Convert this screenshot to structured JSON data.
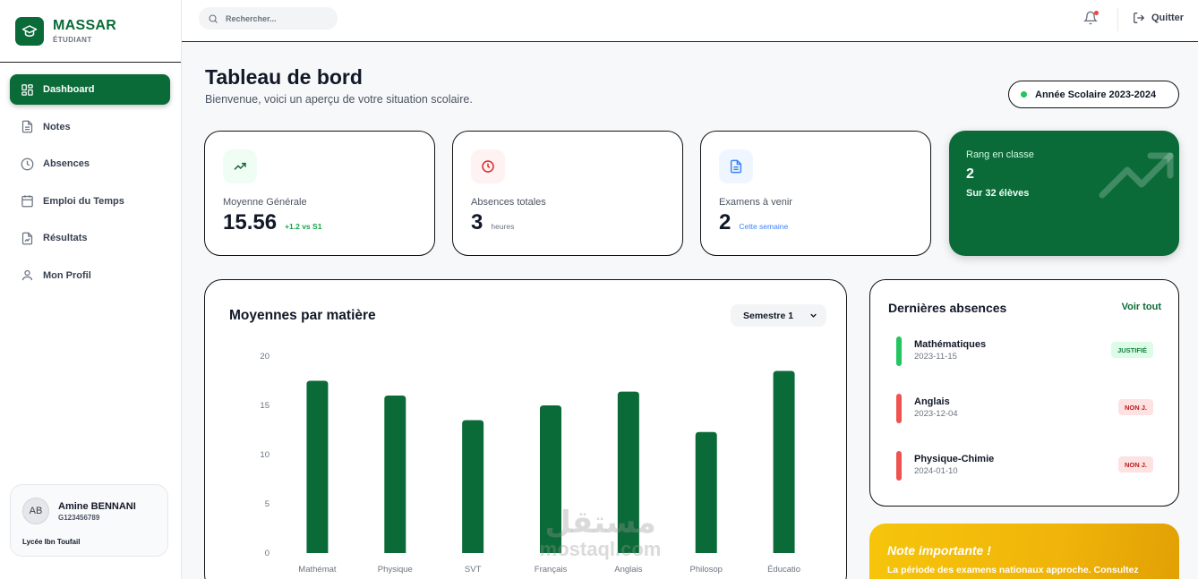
{
  "brand": {
    "name": "MASSAR",
    "subtitle": "ÉTUDIANT"
  },
  "nav": {
    "items": [
      {
        "label": "Dashboard",
        "icon": "dashboard-icon",
        "active": true
      },
      {
        "label": "Notes",
        "icon": "document-icon"
      },
      {
        "label": "Absences",
        "icon": "clock-icon"
      },
      {
        "label": "Emploi du Temps",
        "icon": "calendar-icon"
      },
      {
        "label": "Résultats",
        "icon": "file-chart-icon"
      },
      {
        "label": "Mon Profil",
        "icon": "user-icon"
      }
    ]
  },
  "user": {
    "initials": "AB",
    "name": "Amine BENNANI",
    "id": "G123456789",
    "school": "Lycée Ibn Toufail"
  },
  "topbar": {
    "search_placeholder": "Rechercher...",
    "quit_label": "Quitter"
  },
  "page": {
    "title": "Tableau de bord",
    "subtitle": "Bienvenue, voici un aperçu de votre situation scolaire.",
    "year_badge": "Année Scolaire 2023-2024"
  },
  "stats": [
    {
      "label": "Moyenne Générale",
      "value": "15.56",
      "note": "+1.2 vs S1",
      "color": "#16a34a"
    },
    {
      "label": "Absences totales",
      "value": "3",
      "note": "heures",
      "color": "#dc2626"
    },
    {
      "label": "Examens à venir",
      "value": "2",
      "note": "Cette semaine",
      "color": "#3b82f6"
    }
  ],
  "rank": {
    "label": "Rang en classe",
    "value": "2",
    "sub": "Sur 32 élèves"
  },
  "chart": {
    "title": "Moyennes par matière",
    "selector": "Semestre 1"
  },
  "chart_data": {
    "type": "bar",
    "categories": [
      "Mathémat",
      "Physique",
      "SVT",
      "Français",
      "Anglais",
      "Philosop",
      "Éducatio"
    ],
    "values": [
      17.5,
      16,
      13.5,
      15,
      16.4,
      12.3,
      18.5
    ],
    "yticks": [
      0,
      5,
      10,
      15,
      20
    ],
    "ylim": [
      0,
      20
    ],
    "color": "#0b6b38",
    "grid": false
  },
  "absences": {
    "title": "Dernières absences",
    "link": "Voir tout",
    "items": [
      {
        "subject": "Mathématiques",
        "date": "2023-11-15",
        "status": "JUSTIFIÉ",
        "bar_color": "#22c55e",
        "badge_bg": "#dcfce7",
        "badge_color": "#15803d"
      },
      {
        "subject": "Anglais",
        "date": "2023-12-04",
        "status": "NON J.",
        "bar_color": "#ef5350",
        "badge_bg": "#fee2e2",
        "badge_color": "#b91c1c"
      },
      {
        "subject": "Physique-Chimie",
        "date": "2024-01-10",
        "status": "NON J.",
        "bar_color": "#ef5350",
        "badge_bg": "#fee2e2",
        "badge_color": "#b91c1c"
      }
    ]
  },
  "note": {
    "title": "Note importante !",
    "text": "La période des examens nationaux approche. Consultez"
  },
  "watermark": {
    "ar": "مستقل",
    "en": "mostaql.com"
  }
}
